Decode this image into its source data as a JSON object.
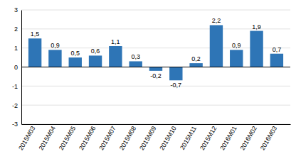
{
  "chart_data": {
    "type": "bar",
    "categories": [
      "2015M03",
      "2015M04",
      "2015M05",
      "2015M06",
      "2015M07",
      "2015M08",
      "2015M09",
      "2015M10",
      "2015M11",
      "2015M12",
      "2016M01",
      "2016M02",
      "2016M03"
    ],
    "values": [
      1.5,
      0.9,
      0.5,
      0.6,
      1.1,
      0.3,
      -0.2,
      -0.7,
      0.2,
      2.2,
      0.9,
      1.9,
      0.7
    ],
    "value_labels": [
      "1,5",
      "0,9",
      "0,5",
      "0,6",
      "1,1",
      "0,3",
      "-0,2",
      "-0,7",
      "0,2",
      "2,2",
      "0,9",
      "1,9",
      "0,7"
    ],
    "color": "#2E75B6",
    "ylim": [
      -3,
      3
    ],
    "yticks": [
      -3,
      -2,
      -1,
      0,
      1,
      2,
      3
    ],
    "grid": true
  }
}
